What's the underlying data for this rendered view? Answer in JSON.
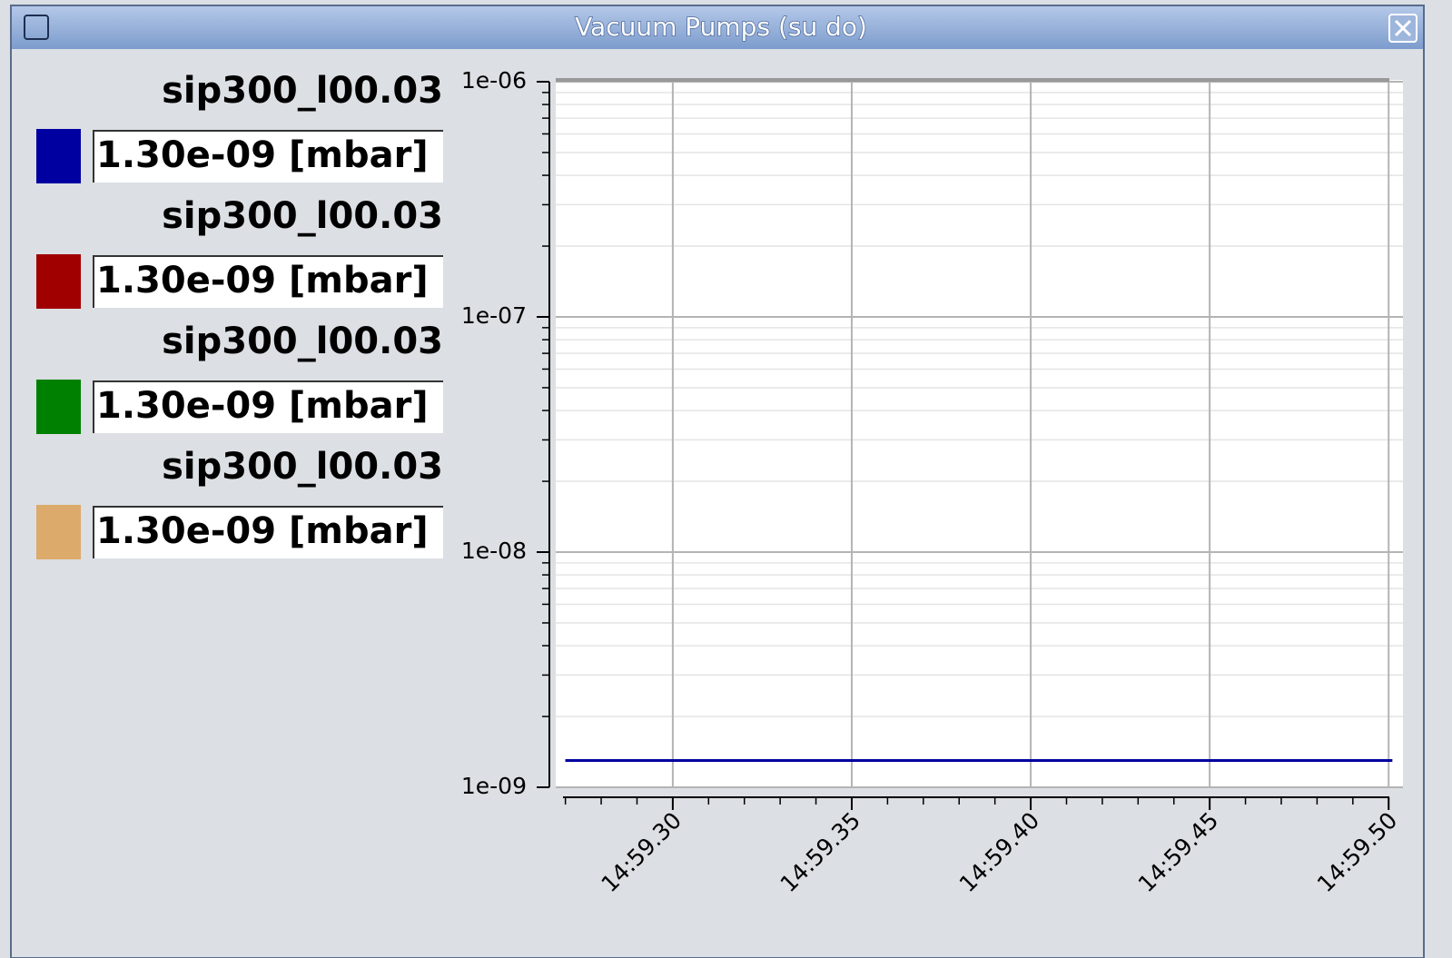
{
  "window": {
    "title": "Vacuum Pumps (su do)"
  },
  "chart_data": {
    "type": "line",
    "x": [
      27.0,
      50.1
    ],
    "xlim": [
      26.73,
      50.4
    ],
    "xticks": [
      {
        "value": 30,
        "label": "14:59.30"
      },
      {
        "value": 35,
        "label": "14:59.35"
      },
      {
        "value": 40,
        "label": "14:59.40"
      },
      {
        "value": 45,
        "label": "14:59.45"
      },
      {
        "value": 50,
        "label": "14:59.50"
      }
    ],
    "ylim": [
      1e-09,
      1e-06
    ],
    "yticks": [
      {
        "value": 1e-09,
        "label": "1e-09"
      },
      {
        "value": 1e-08,
        "label": "1e-08"
      },
      {
        "value": 1e-07,
        "label": "1e-07"
      },
      {
        "value": 1e-06,
        "label": "1e-06"
      }
    ],
    "log_y": true,
    "grid": true,
    "legend": "left",
    "series": [
      {
        "name": "sip300_l00.03",
        "color": "#0000a0",
        "values": [
          1.3e-09,
          1.3e-09
        ],
        "value_label": "1.30e-09 [mbar]"
      },
      {
        "name": "sip300_l00.03",
        "color": "#a00000",
        "values": [
          1.3e-09,
          1.3e-09
        ],
        "value_label": "1.30e-09 [mbar]"
      },
      {
        "name": "sip300_l00.03",
        "color": "#008000",
        "values": [
          1.3e-09,
          1.3e-09
        ],
        "value_label": "1.30e-09 [mbar]"
      },
      {
        "name": "sip300_l00.03",
        "color": "#dcaa6a",
        "values": [
          1.3e-09,
          1.3e-09
        ],
        "value_label": "1.30e-09 [mbar]"
      }
    ]
  }
}
